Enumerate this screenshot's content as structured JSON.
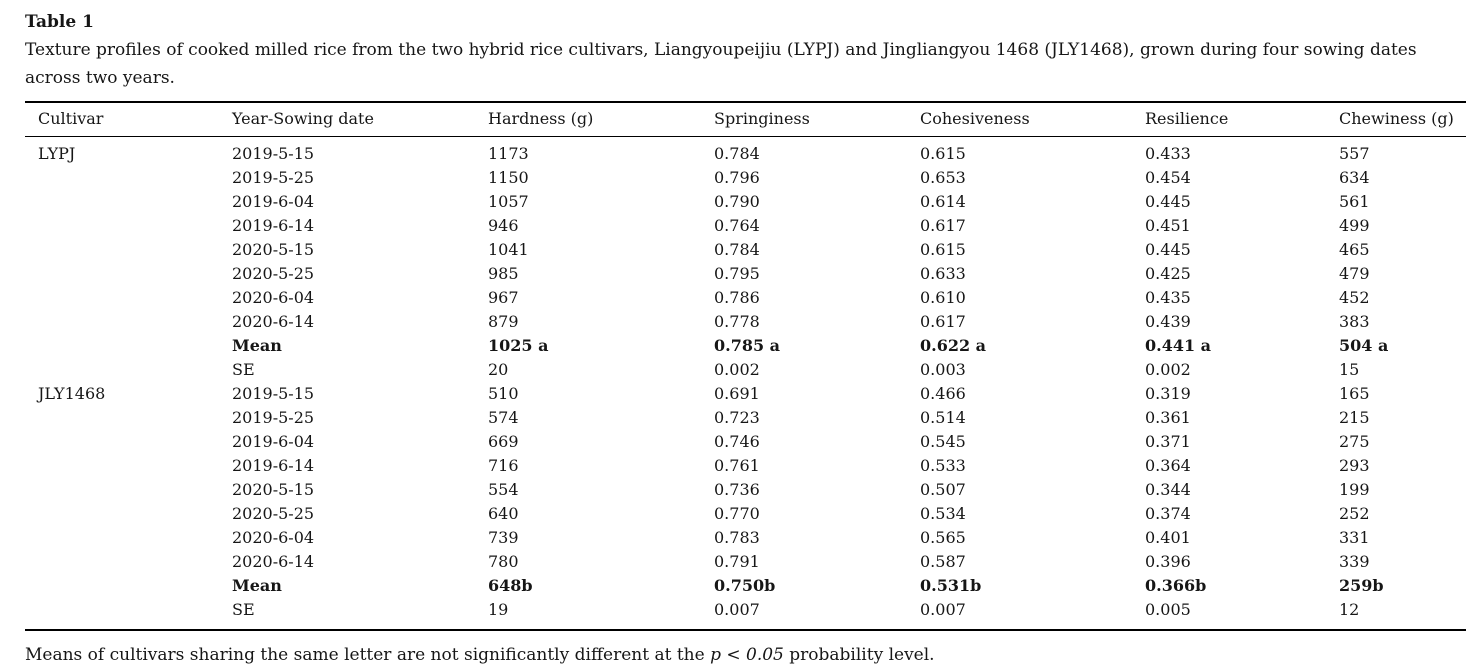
{
  "page": {
    "title": "Table 1",
    "caption": "Texture profiles of cooked milled rice from the two hybrid rice cultivars, Liangyoupeijiu (LYPJ) and Jingliangyou 1468 (JLY1468), grown during four sowing dates across two years."
  },
  "table": {
    "columns": [
      "Cultivar",
      "Year-Sowing date",
      "Hardness (g)",
      "Springiness",
      "Cohesiveness",
      "Resilience",
      "Chewiness (g)"
    ],
    "rows": [
      {
        "cultivar": "LYPJ",
        "cells": [
          "2019-5-15",
          "1173",
          "0.784",
          "0.615",
          "0.433",
          "557"
        ],
        "bold": false
      },
      {
        "cultivar": "",
        "cells": [
          "2019-5-25",
          "1150",
          "0.796",
          "0.653",
          "0.454",
          "634"
        ],
        "bold": false
      },
      {
        "cultivar": "",
        "cells": [
          "2019-6-04",
          "1057",
          "0.790",
          "0.614",
          "0.445",
          "561"
        ],
        "bold": false
      },
      {
        "cultivar": "",
        "cells": [
          "2019-6-14",
          "946",
          "0.764",
          "0.617",
          "0.451",
          "499"
        ],
        "bold": false
      },
      {
        "cultivar": "",
        "cells": [
          "2020-5-15",
          "1041",
          "0.784",
          "0.615",
          "0.445",
          "465"
        ],
        "bold": false
      },
      {
        "cultivar": "",
        "cells": [
          "2020-5-25",
          "985",
          "0.795",
          "0.633",
          "0.425",
          "479"
        ],
        "bold": false
      },
      {
        "cultivar": "",
        "cells": [
          "2020-6-04",
          "967",
          "0.786",
          "0.610",
          "0.435",
          "452"
        ],
        "bold": false
      },
      {
        "cultivar": "",
        "cells": [
          "2020-6-14",
          "879",
          "0.778",
          "0.617",
          "0.439",
          "383"
        ],
        "bold": false
      },
      {
        "cultivar": "",
        "cells": [
          "Mean",
          "1025 a",
          "0.785 a",
          "0.622 a",
          "0.441 a",
          "504 a"
        ],
        "bold": true
      },
      {
        "cultivar": "",
        "cells": [
          "SE",
          "20",
          "0.002",
          "0.003",
          "0.002",
          "15"
        ],
        "bold": false
      },
      {
        "cultivar": "JLY1468",
        "cells": [
          "2019-5-15",
          "510",
          "0.691",
          "0.466",
          "0.319",
          "165"
        ],
        "bold": false
      },
      {
        "cultivar": "",
        "cells": [
          "2019-5-25",
          "574",
          "0.723",
          "0.514",
          "0.361",
          "215"
        ],
        "bold": false
      },
      {
        "cultivar": "",
        "cells": [
          "2019-6-04",
          "669",
          "0.746",
          "0.545",
          "0.371",
          "275"
        ],
        "bold": false
      },
      {
        "cultivar": "",
        "cells": [
          "2019-6-14",
          "716",
          "0.761",
          "0.533",
          "0.364",
          "293"
        ],
        "bold": false
      },
      {
        "cultivar": "",
        "cells": [
          "2020-5-15",
          "554",
          "0.736",
          "0.507",
          "0.344",
          "199"
        ],
        "bold": false
      },
      {
        "cultivar": "",
        "cells": [
          "2020-5-25",
          "640",
          "0.770",
          "0.534",
          "0.374",
          "252"
        ],
        "bold": false
      },
      {
        "cultivar": "",
        "cells": [
          "2020-6-04",
          "739",
          "0.783",
          "0.565",
          "0.401",
          "331"
        ],
        "bold": false
      },
      {
        "cultivar": "",
        "cells": [
          "2020-6-14",
          "780",
          "0.791",
          "0.587",
          "0.396",
          "339"
        ],
        "bold": false
      },
      {
        "cultivar": "",
        "cells": [
          "Mean",
          "648b",
          "0.750b",
          "0.531b",
          "0.366b",
          "259b"
        ],
        "bold": true
      },
      {
        "cultivar": "",
        "cells": [
          "SE",
          "19",
          "0.007",
          "0.007",
          "0.005",
          "12"
        ],
        "bold": false
      }
    ]
  },
  "footnote": {
    "prefix": "Means of cultivars sharing the same letter are not significantly different at the ",
    "italic": "p < 0.05",
    "suffix": " probability level."
  },
  "colors": {
    "text": "#161616",
    "rule": "#000000",
    "background": "#ffffff"
  }
}
